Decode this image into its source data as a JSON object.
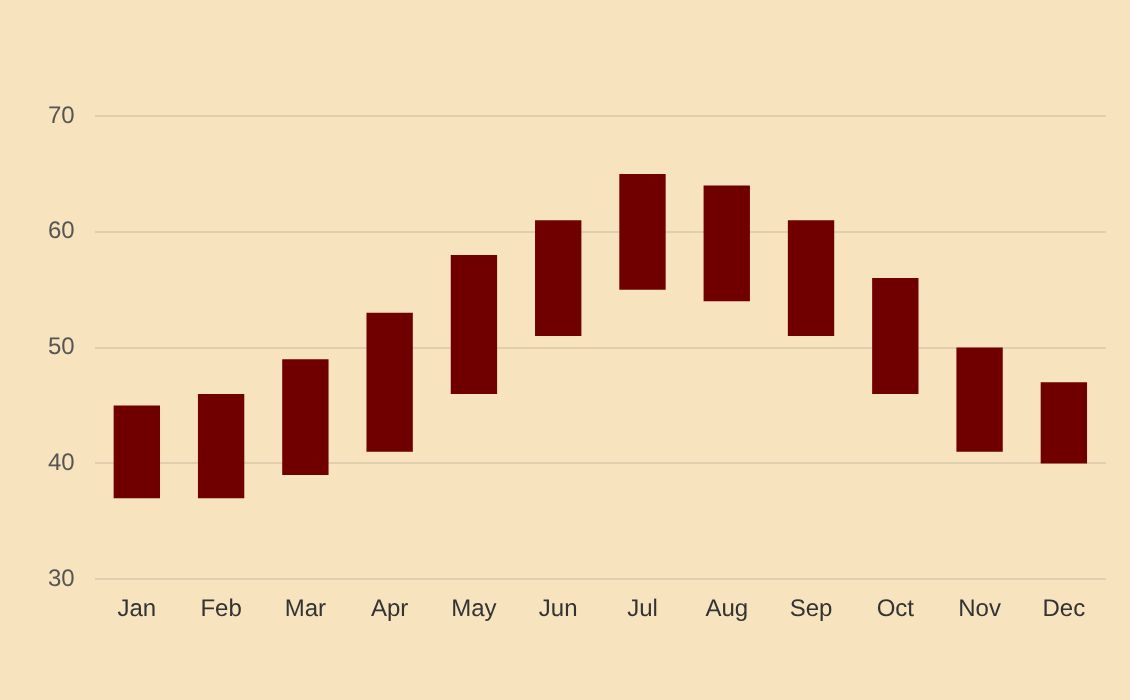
{
  "chart_data": {
    "type": "bar",
    "categories": [
      "Jan",
      "Feb",
      "Mar",
      "Apr",
      "May",
      "Jun",
      "Jul",
      "Aug",
      "Sep",
      "Oct",
      "Nov",
      "Dec"
    ],
    "base": [
      37,
      37,
      39,
      41,
      46,
      51,
      55,
      54,
      51,
      46,
      41,
      40
    ],
    "values": [
      8,
      9,
      10,
      12,
      12,
      10,
      10,
      10,
      10,
      10,
      9,
      7
    ],
    "color": "#700000",
    "ylim": [
      30,
      70
    ],
    "yticks": [
      30,
      40,
      50,
      60,
      70
    ],
    "grid": "y",
    "legend": false
  }
}
